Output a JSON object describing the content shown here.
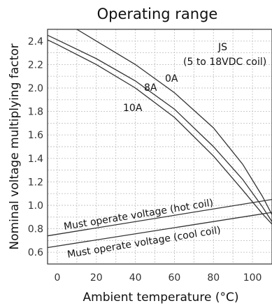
{
  "chart_data": {
    "type": "line",
    "title": "Operating range",
    "xlabel": "Ambient temperature (°C)",
    "ylabel": "Nominal voltage multiplying factor",
    "xlim": [
      -5,
      110
    ],
    "ylim": [
      0.5,
      2.5
    ],
    "x_ticks": [
      0,
      20,
      40,
      60,
      80,
      100
    ],
    "y_ticks": [
      0.6,
      0.8,
      1.0,
      1.2,
      1.4,
      1.6,
      1.8,
      2.0,
      2.2,
      2.4
    ],
    "grid": true,
    "series": [
      {
        "name": "0A",
        "points": [
          [
            10,
            2.5
          ],
          [
            20,
            2.4
          ],
          [
            40,
            2.2
          ],
          [
            60,
            1.96
          ],
          [
            80,
            1.66
          ],
          [
            95,
            1.35
          ],
          [
            105,
            1.08
          ],
          [
            110,
            0.92
          ]
        ]
      },
      {
        "name": "8A",
        "points": [
          [
            -5,
            2.45
          ],
          [
            0,
            2.41
          ],
          [
            20,
            2.25
          ],
          [
            40,
            2.06
          ],
          [
            60,
            1.82
          ],
          [
            80,
            1.5
          ],
          [
            95,
            1.22
          ],
          [
            105,
            0.99
          ],
          [
            110,
            0.86
          ]
        ]
      },
      {
        "name": "10A",
        "points": [
          [
            -5,
            2.41
          ],
          [
            0,
            2.37
          ],
          [
            20,
            2.2
          ],
          [
            40,
            2.0
          ],
          [
            60,
            1.75
          ],
          [
            80,
            1.42
          ],
          [
            95,
            1.13
          ],
          [
            105,
            0.93
          ],
          [
            110,
            0.84
          ]
        ]
      },
      {
        "name": "Must operate voltage (hot coil)",
        "points": [
          [
            -5,
            0.74
          ],
          [
            110,
            1.05
          ]
        ]
      },
      {
        "name": "Must operate voltage (cool coil)",
        "points": [
          [
            -5,
            0.64
          ],
          [
            110,
            0.94
          ]
        ]
      }
    ],
    "annotations": {
      "model": "JS",
      "coil_range": "(5 to 18VDC coil)",
      "label_0A": "0A",
      "label_8A": "8A",
      "label_10A": "10A",
      "hot_coil": "Must operate voltage (hot coil)",
      "cool_coil": "Must operate voltage (cool coil)"
    }
  }
}
